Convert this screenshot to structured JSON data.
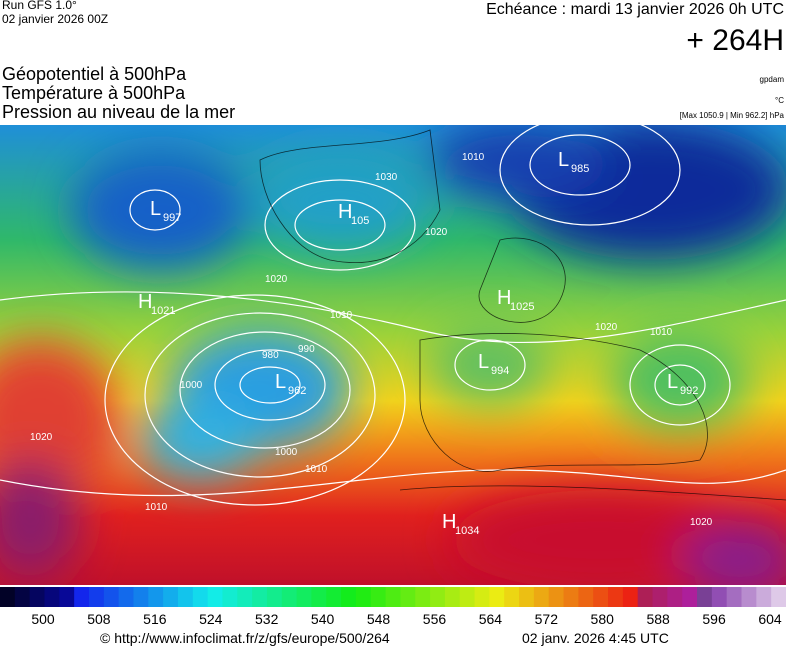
{
  "header": {
    "run": "Run GFS 1.0°",
    "run_date": "02 janvier 2026 00Z",
    "forecast": "Echéance : mardi 13 janvier 2026 0h UTC",
    "horizon": "+ 264H",
    "fields": [
      "Géopotentiel à 500hPa",
      "Température à 500hPa",
      "Pression au niveau de la mer"
    ],
    "units": [
      "gpdam",
      "°C",
      "[Max 1050.9 | Min 962.2] hPa"
    ]
  },
  "map": {
    "centers": [
      {
        "type": "L",
        "value": 997
      },
      {
        "type": "H",
        "value": 1021
      },
      {
        "type": "H",
        "value": 105
      },
      {
        "type": "L",
        "value": 985
      },
      {
        "type": "H",
        "value": 1025
      },
      {
        "type": "L",
        "value": 994
      },
      {
        "type": "L",
        "value": 962
      },
      {
        "type": "L",
        "value": 992
      },
      {
        "type": "H",
        "value": 1034
      }
    ],
    "isobar_labels": [
      1010,
      1030,
      1020,
      1020,
      1010,
      980,
      990,
      1000,
      1010,
      1010,
      1020,
      1020,
      1010,
      1000,
      1020
    ]
  },
  "colorbar": {
    "ticks": [
      500,
      508,
      516,
      524,
      532,
      540,
      548,
      556,
      564,
      572,
      580,
      588,
      596,
      604
    ]
  },
  "footer": {
    "url": "© http://www.infoclimat.fr/z/gfs/europe/500/264",
    "generated": "02 janv. 2026  4:45 UTC"
  }
}
